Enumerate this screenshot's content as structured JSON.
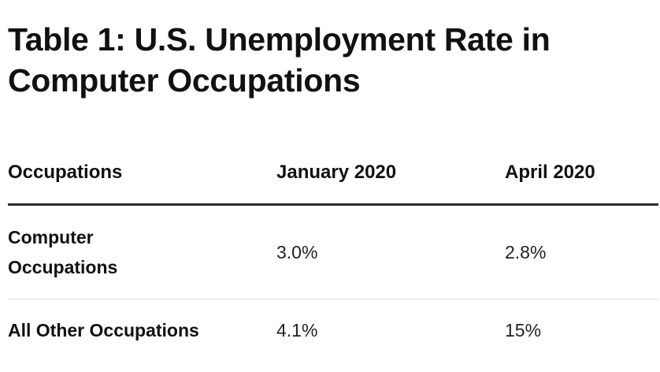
{
  "title": "Table 1: U.S. Unemployment Rate in Computer Occupations",
  "table": {
    "headers": [
      "Occupations",
      "January 2020",
      "April 2020"
    ],
    "rows": [
      {
        "occupation": "Computer Occupations",
        "jan_2020": "3.0%",
        "apr_2020": "2.8%"
      },
      {
        "occupation": "All Other Occupations",
        "jan_2020": "4.1%",
        "apr_2020": "15%"
      }
    ]
  }
}
